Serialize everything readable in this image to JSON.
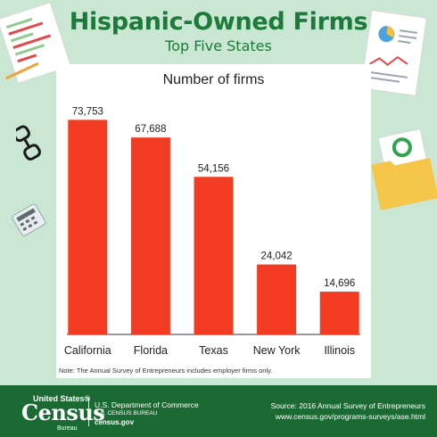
{
  "header": {
    "title": "Hispanic-Owned Firms",
    "subtitle": "Top Five States"
  },
  "chart_data": {
    "type": "bar",
    "title": "Number of firms",
    "categories": [
      "California",
      "Florida",
      "Texas",
      "New York",
      "Illinois"
    ],
    "values": [
      73753,
      67688,
      54156,
      24042,
      14696
    ],
    "value_labels": [
      "73,753",
      "67,688",
      "54,156",
      "24,042",
      "14,696"
    ],
    "ylim": [
      0,
      80000
    ],
    "grid": false,
    "bar_color": "#f23b22"
  },
  "note": "Note: The Annual Survey of Entrepreneurs includes employer firms only.",
  "footer": {
    "logo_top": "United States®",
    "logo_main": "Census",
    "logo_sub": "Bureau",
    "dept_line1": "U.S. Department of Commerce",
    "dept_line2": "U.S. CENSUS BUREAU",
    "dept_line3": "census.gov",
    "source_line1": "Source: 2016 Annual Survey of Entrepreneurs",
    "source_line2": "www.census.gov/programs-surveys/ase.html"
  },
  "colors": {
    "background": "#c9e7d3",
    "title": "#1d7a3a",
    "footer": "#1c6a33"
  }
}
